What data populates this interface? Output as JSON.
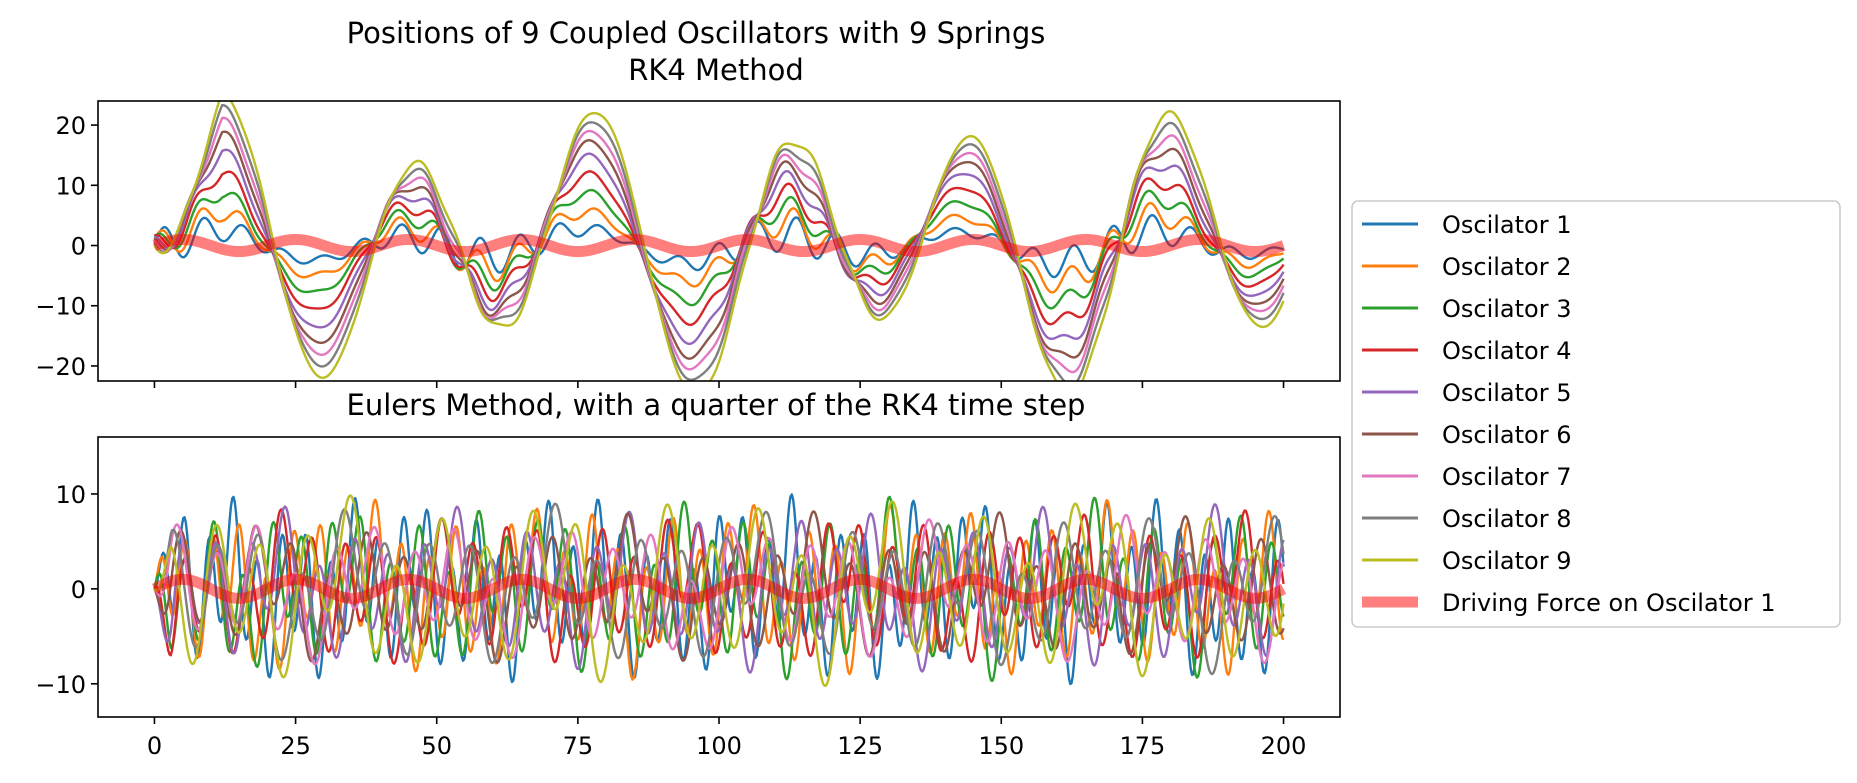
{
  "chart_data": [
    {
      "type": "line",
      "title": "Positions of 9 Coupled Oscillators with 9 Springs",
      "subtitle": "RK4 Method",
      "xlabel": "",
      "ylabel": "",
      "xlim": [
        -10,
        210
      ],
      "ylim": [
        -22.5,
        24
      ],
      "x_ticks": [
        0,
        25,
        50,
        75,
        100,
        125,
        150,
        175,
        200
      ],
      "x_tick_labels_visible": false,
      "y_ticks": [
        -20,
        -10,
        0,
        10,
        20
      ],
      "y_tick_labels": [
        "−20",
        "−10",
        "0",
        "10",
        "20"
      ],
      "x_range": [
        0,
        200
      ],
      "base_period": 33.3,
      "series": [
        {
          "name": "Oscilator 1",
          "color": "#1f77b4",
          "slow_amp": 2.2,
          "fast_amp": 3.0,
          "fast_period": 7.0,
          "phase": 0.0
        },
        {
          "name": "Oscilator 2",
          "color": "#ff7f0e",
          "slow_amp": 4.5,
          "fast_amp": 2.5,
          "fast_period": 7.0,
          "phase": 0.4
        },
        {
          "name": "Oscilator 3",
          "color": "#2ca02c",
          "slow_amp": 7.0,
          "fast_amp": 2.0,
          "fast_period": 7.0,
          "phase": 0.8
        },
        {
          "name": "Oscilator 4",
          "color": "#d62728",
          "slow_amp": 9.5,
          "fast_amp": 1.8,
          "fast_period": 7.0,
          "phase": 1.2
        },
        {
          "name": "Oscilator 5",
          "color": "#9467bd",
          "slow_amp": 12.0,
          "fast_amp": 1.5,
          "fast_period": 7.0,
          "phase": 1.6
        },
        {
          "name": "Oscilator 6",
          "color": "#8c564b",
          "slow_amp": 14.0,
          "fast_amp": 1.3,
          "fast_period": 7.0,
          "phase": 2.0
        },
        {
          "name": "Oscilator 7",
          "color": "#e377c2",
          "slow_amp": 15.5,
          "fast_amp": 1.2,
          "fast_period": 7.0,
          "phase": 2.4
        },
        {
          "name": "Oscilator 8",
          "color": "#7f7f7f",
          "slow_amp": 17.0,
          "fast_amp": 1.0,
          "fast_period": 7.0,
          "phase": 2.8
        },
        {
          "name": "Oscilator 9",
          "color": "#bcbd22",
          "slow_amp": 18.5,
          "fast_amp": 0.8,
          "fast_period": 7.0,
          "phase": 3.2
        }
      ],
      "driving_force": {
        "name": "Driving Force on Oscilator 1",
        "color": "#ff0000",
        "opacity": 0.5,
        "amplitude": 1.0,
        "period": 20.0
      }
    },
    {
      "type": "line",
      "title": "Eulers Method, with a quarter of the RK4 time step",
      "xlabel": "",
      "ylabel": "",
      "xlim": [
        -10,
        210
      ],
      "ylim": [
        -13.5,
        16
      ],
      "x_ticks": [
        0,
        25,
        50,
        75,
        100,
        125,
        150,
        175,
        200
      ],
      "x_tick_labels": [
        "0",
        "25",
        "50",
        "75",
        "100",
        "125",
        "150",
        "175",
        "200"
      ],
      "y_ticks": [
        -10,
        0,
        10
      ],
      "y_tick_labels": [
        "−10",
        "0",
        "10"
      ],
      "x_range": [
        0,
        200
      ],
      "series": [
        {
          "name": "Oscilator 1",
          "color": "#1f77b4",
          "amp": 6.0,
          "period_a": 4.3,
          "period_b": 11.0,
          "phase": 0.0
        },
        {
          "name": "Oscilator 2",
          "color": "#ff7f0e",
          "amp": 5.5,
          "period_a": 4.8,
          "period_b": 13.0,
          "phase": 0.7
        },
        {
          "name": "Oscilator 3",
          "color": "#2ca02c",
          "amp": 5.5,
          "period_a": 5.2,
          "period_b": 12.0,
          "phase": 1.4
        },
        {
          "name": "Oscilator 4",
          "color": "#d62728",
          "amp": 5.0,
          "period_a": 5.7,
          "period_b": 14.0,
          "phase": 2.1
        },
        {
          "name": "Oscilator 5",
          "color": "#9467bd",
          "amp": 5.0,
          "period_a": 6.1,
          "period_b": 15.0,
          "phase": 2.8
        },
        {
          "name": "Oscilator 6",
          "color": "#8c564b",
          "amp": 4.5,
          "period_a": 6.6,
          "period_b": 16.0,
          "phase": 3.5
        },
        {
          "name": "Oscilator 7",
          "color": "#e377c2",
          "amp": 4.5,
          "period_a": 7.0,
          "period_b": 17.0,
          "phase": 4.2
        },
        {
          "name": "Oscilator 8",
          "color": "#7f7f7f",
          "amp": 5.0,
          "period_a": 7.5,
          "period_b": 18.0,
          "phase": 4.9
        },
        {
          "name": "Oscilator 9",
          "color": "#bcbd22",
          "amp": 6.0,
          "period_a": 8.0,
          "period_b": 19.0,
          "phase": 5.6
        }
      ],
      "driving_force": {
        "name": "Driving Force on Oscilator 1",
        "color": "#ff0000",
        "opacity": 0.5,
        "amplitude": 1.0,
        "period": 20.0
      }
    }
  ],
  "legend": {
    "placement": "center-right",
    "entries": [
      {
        "label": "Oscilator 1",
        "color": "#1f77b4",
        "kind": "line"
      },
      {
        "label": "Oscilator 2",
        "color": "#ff7f0e",
        "kind": "line"
      },
      {
        "label": "Oscilator 3",
        "color": "#2ca02c",
        "kind": "line"
      },
      {
        "label": "Oscilator 4",
        "color": "#d62728",
        "kind": "line"
      },
      {
        "label": "Oscilator 5",
        "color": "#9467bd",
        "kind": "line"
      },
      {
        "label": "Oscilator 6",
        "color": "#8c564b",
        "kind": "line"
      },
      {
        "label": "Oscilator 7",
        "color": "#e377c2",
        "kind": "line"
      },
      {
        "label": "Oscilator 8",
        "color": "#7f7f7f",
        "kind": "line"
      },
      {
        "label": "Oscilator 9",
        "color": "#bcbd22",
        "kind": "line"
      },
      {
        "label": "Driving Force on Oscilator 1",
        "color": "#ff0000",
        "kind": "thick-translucent"
      }
    ]
  }
}
